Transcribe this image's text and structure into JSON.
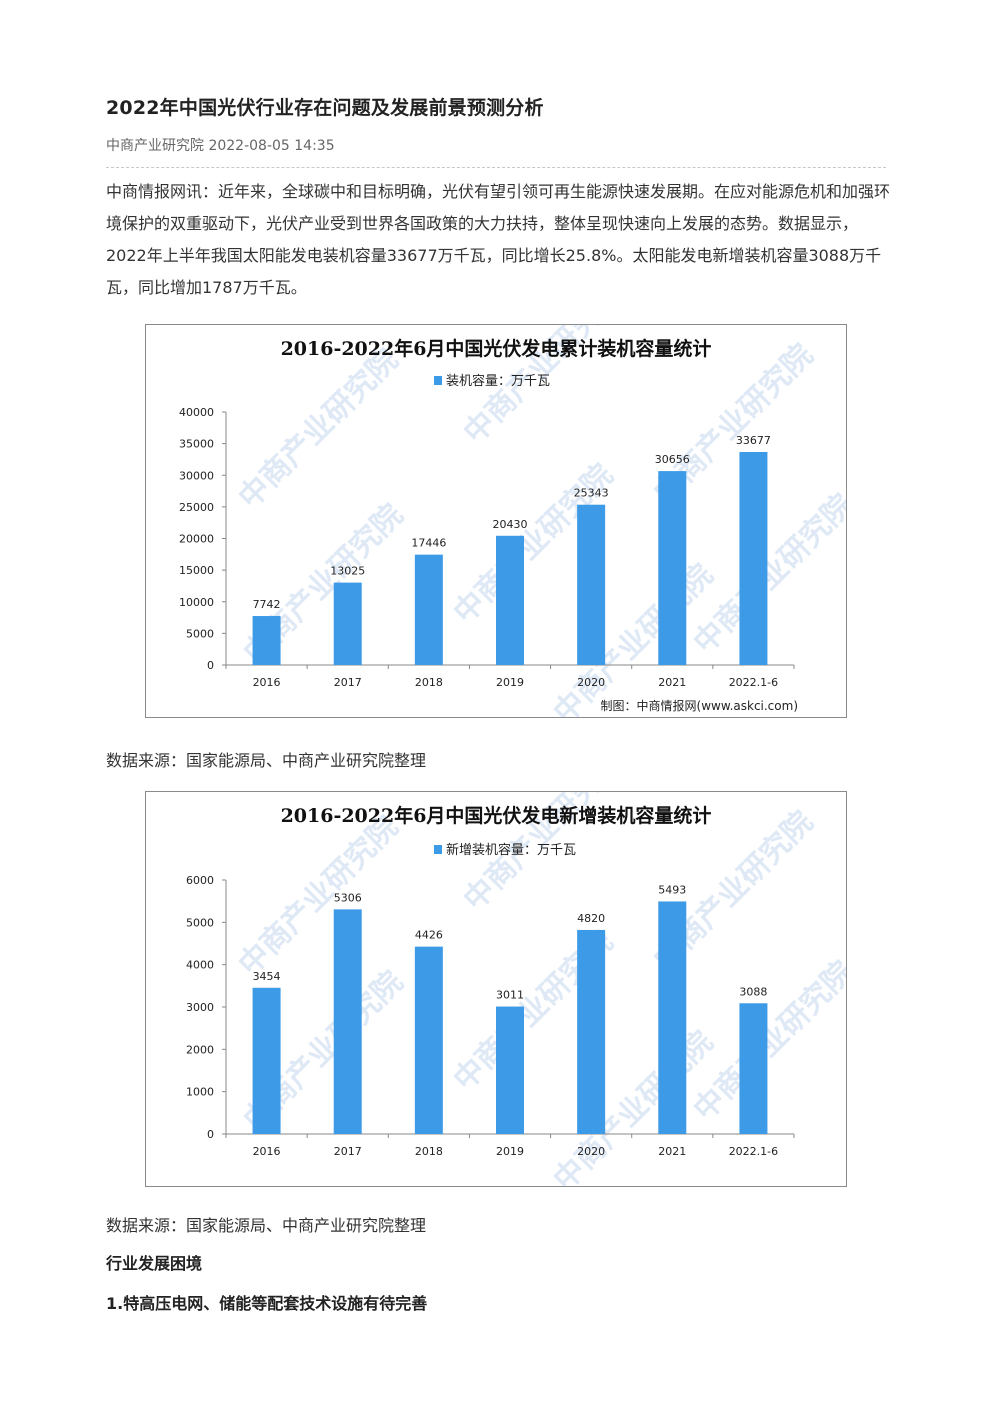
{
  "article": {
    "title": "2022年中国光伏行业存在问题及发展前景预测分析",
    "meta": "中商产业研究院 2022-08-05 14:35",
    "intro": "中商情报网讯：近年来，全球碳中和目标明确，光伏有望引领可再生能源快速发展期。在应对能源危机和加强环境保护的双重驱动下，光伏产业受到世界各国政策的大力扶持，整体呈现快速向上发展的态势。数据显示，2022年上半年我国太阳能发电装机容量33677万千瓦，同比增长25.8%。太阳能发电新增装机容量3088万千瓦，同比增加1787万千瓦。",
    "source_1": "数据来源：国家能源局、中商产业研究院整理",
    "source_2": "数据来源：国家能源局、中商产业研究院整理",
    "section_heading": "行业发展困境",
    "sub_heading": "1.特高压电网、储能等配套技术设施有待完善"
  },
  "watermark": "中商产业研究院",
  "colors": {
    "bar": "#3c9ae6",
    "axis": "#888888"
  },
  "chart_data": [
    {
      "type": "bar",
      "title": "2016-2022年6月中国光伏发电累计装机容量统计",
      "categories": [
        "2016",
        "2017",
        "2018",
        "2019",
        "2020",
        "2021",
        "2022.1-6"
      ],
      "series": [
        {
          "name": "装机容量：万千瓦",
          "values": [
            7742,
            13025,
            17446,
            20430,
            25343,
            30656,
            33677
          ]
        }
      ],
      "ylim": [
        0,
        40000
      ],
      "yticks": [
        0,
        5000,
        10000,
        15000,
        20000,
        25000,
        30000,
        35000,
        40000
      ],
      "grid": false,
      "legend": "top",
      "credit": "制图：中商情报网(www.askci.com)"
    },
    {
      "type": "bar",
      "title": "2016-2022年6月中国光伏发电新增装机容量统计",
      "categories": [
        "2016",
        "2017",
        "2018",
        "2019",
        "2020",
        "2021",
        "2022.1-6"
      ],
      "series": [
        {
          "name": "新增装机容量：万千瓦",
          "values": [
            3454,
            5306,
            4426,
            3011,
            4820,
            5493,
            3088
          ]
        }
      ],
      "ylim": [
        0,
        6000
      ],
      "yticks": [
        0,
        1000,
        2000,
        3000,
        4000,
        5000,
        6000
      ],
      "grid": false,
      "legend": "top"
    }
  ]
}
